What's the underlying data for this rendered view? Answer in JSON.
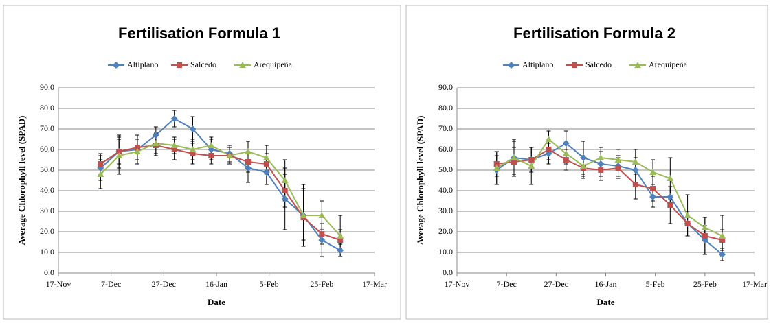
{
  "chart_data": [
    {
      "type": "line",
      "title": "Fertilisation Formula 1",
      "xlabel": "Date",
      "ylabel": "Average Chlorophyll level (SPAD)",
      "x": [
        "3-Dec",
        "10-Dec",
        "17-Dec",
        "24-Dec",
        "31-Dec",
        "7-Jan",
        "14-Jan",
        "21-Jan",
        "28-Jan",
        "4-Feb",
        "11-Feb",
        "18-Feb",
        "25-Feb",
        "4-Mar"
      ],
      "xlim": [
        "17-Nov",
        "17-Mar"
      ],
      "xticks": [
        "17-Nov",
        "7-Dec",
        "27-Dec",
        "16-Jan",
        "5-Feb",
        "25-Feb",
        "17-Mar"
      ],
      "ylim": [
        0,
        90
      ],
      "yticks": [
        {
          "value": 0,
          "label": "0.0"
        },
        {
          "value": 10,
          "label": "10.0"
        },
        {
          "value": 20,
          "label": "20.0"
        },
        {
          "value": 30,
          "label": "30.0"
        },
        {
          "value": 40,
          "label": "40.0"
        },
        {
          "value": 50,
          "label": "50.0"
        },
        {
          "value": 60,
          "label": "60.0"
        },
        {
          "value": 70,
          "label": "70.0"
        },
        {
          "value": 80,
          "label": "80.0"
        },
        {
          "value": 90,
          "label": "90.0"
        }
      ],
      "grid": true,
      "legend": "top",
      "series": [
        {
          "name": "Altiplano",
          "color": "#4f81bd",
          "marker": "diamond",
          "values": [
            51,
            59,
            60,
            67,
            75,
            70,
            60,
            58,
            51,
            49,
            36,
            28,
            16,
            11
          ],
          "errors": [
            6,
            6,
            5,
            4,
            4,
            6,
            5,
            4,
            7,
            6,
            15,
            12,
            8,
            3
          ]
        },
        {
          "name": "Salcedo",
          "color": "#c0504d",
          "marker": "square",
          "values": [
            53,
            59,
            61,
            62,
            60,
            58,
            57,
            57,
            54,
            53,
            40,
            27,
            19,
            16
          ],
          "errors": [
            5,
            8,
            6,
            5,
            5,
            5,
            4,
            4,
            5,
            5,
            8,
            14,
            5,
            5
          ]
        },
        {
          "name": "Arequipeña",
          "color": "#9bbb59",
          "marker": "triangle",
          "values": [
            48,
            57,
            59,
            63,
            62,
            60,
            62,
            57,
            59,
            56,
            45,
            28,
            28,
            18
          ],
          "errors": [
            7,
            9,
            6,
            5,
            4,
            5,
            4,
            4,
            5,
            6,
            10,
            15,
            7,
            10
          ]
        }
      ]
    },
    {
      "type": "line",
      "title": "Fertilisation Formula 2",
      "xlabel": "Date",
      "ylabel": "Average Chlorophyll level (SPAD)",
      "x": [
        "3-Dec",
        "10-Dec",
        "17-Dec",
        "24-Dec",
        "31-Dec",
        "7-Jan",
        "14-Jan",
        "21-Jan",
        "28-Jan",
        "4-Feb",
        "11-Feb",
        "18-Feb",
        "25-Feb",
        "4-Mar"
      ],
      "xlim": [
        "17-Nov",
        "17-Mar"
      ],
      "xticks": [
        "17-Nov",
        "7-Dec",
        "27-Dec",
        "16-Jan",
        "5-Feb",
        "25-Feb",
        "17-Mar"
      ],
      "ylim": [
        0,
        90
      ],
      "yticks": [
        {
          "value": 0,
          "label": "0.0"
        },
        {
          "value": 10,
          "label": "10.0"
        },
        {
          "value": 20,
          "label": "20.0"
        },
        {
          "value": 30,
          "label": "30.0"
        },
        {
          "value": 40,
          "label": "40.0"
        },
        {
          "value": 50,
          "label": "50.0"
        },
        {
          "value": 60,
          "label": "60.0"
        },
        {
          "value": 70,
          "label": "70.0"
        },
        {
          "value": 80,
          "label": "80.0"
        },
        {
          "value": 90,
          "label": "90.0"
        }
      ],
      "grid": true,
      "legend": "top",
      "series": [
        {
          "name": "Altiplano",
          "color": "#4f81bd",
          "marker": "diamond",
          "values": [
            50,
            56,
            55,
            58,
            63,
            56,
            53,
            52,
            50,
            37,
            37,
            24,
            16,
            9
          ],
          "errors": [
            7,
            8,
            6,
            5,
            6,
            8,
            6,
            5,
            6,
            5,
            5,
            6,
            7,
            3
          ]
        },
        {
          "name": "Salcedo",
          "color": "#c0504d",
          "marker": "square",
          "values": [
            53,
            54,
            55,
            60,
            55,
            51,
            50,
            51,
            43,
            41,
            33,
            24,
            18,
            16
          ],
          "errors": [
            6,
            7,
            6,
            5,
            5,
            5,
            5,
            5,
            7,
            6,
            9,
            6,
            9,
            5
          ]
        },
        {
          "name": "Arequipeña",
          "color": "#9bbb59",
          "marker": "triangle",
          "values": [
            51,
            56,
            52,
            65,
            58,
            52,
            56,
            55,
            54,
            49,
            46,
            28,
            22,
            18
          ],
          "errors": [
            8,
            9,
            9,
            4,
            5,
            5,
            5,
            5,
            6,
            6,
            10,
            10,
            5,
            10
          ]
        }
      ]
    }
  ]
}
